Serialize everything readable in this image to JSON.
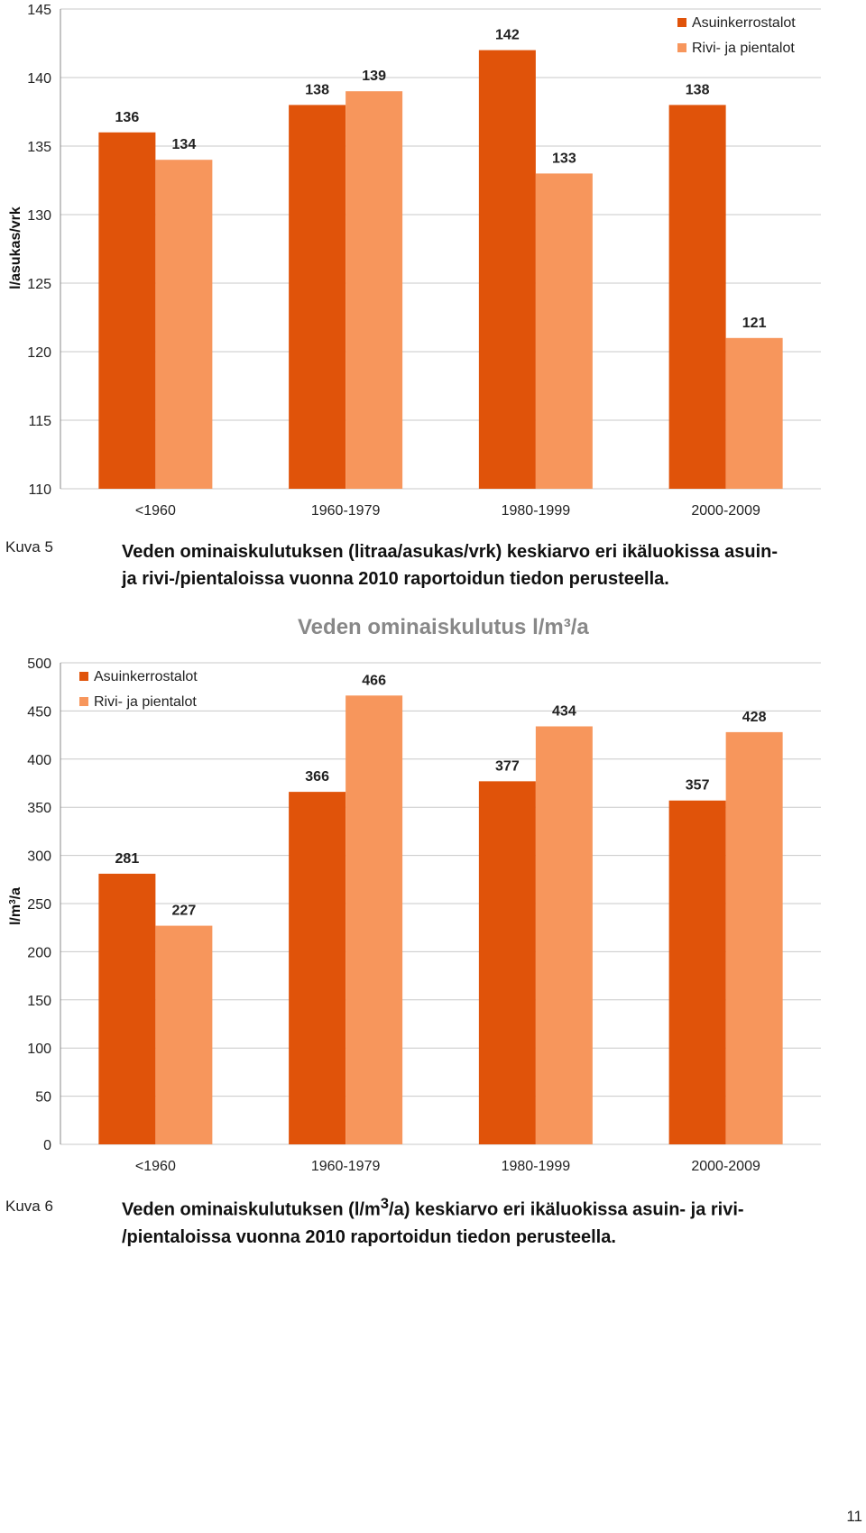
{
  "colors": {
    "asuinkerrostalot": "#e0530a",
    "rivi_pientalot": "#f7965c",
    "grid": "#c8c8c8",
    "axis_text": "#222222"
  },
  "caption1": {
    "label": "Kuva 5",
    "line1": "Veden ominaiskulutuksen (litraa/asukas/vrk) keskiarvo eri ikäluokissa asuin-",
    "line2": "ja rivi-/pientaloissa vuonna 2010 raportoidun tiedon perusteella."
  },
  "caption2": {
    "label": "Kuva 6",
    "line1_pre": "Veden ominaiskulutuksen (l/m",
    "line1_sup": "3",
    "line1_post": "/a) keskiarvo eri ikäluokissa asuin- ja rivi-",
    "line2": "/pientaloissa vuonna 2010 raportoidun tiedon perusteella."
  },
  "chart2_cut_title": "Veden ominaiskulutus l/m³/a",
  "page_number": "11",
  "chart_data": [
    {
      "type": "bar",
      "title": "",
      "ylabel": "l/asukas/vrk",
      "ylabel_sup": "",
      "ylabel_suffix": "",
      "ylim": [
        110,
        145
      ],
      "yticks": [
        110,
        115,
        120,
        125,
        130,
        135,
        140,
        145
      ],
      "grid": true,
      "legend": "top-right",
      "categories": [
        "<1960",
        "1960-1979",
        "1980-1999",
        "2000-2009"
      ],
      "series": [
        {
          "name": "Asuinkerrostalot",
          "values": [
            136,
            138,
            142,
            138
          ]
        },
        {
          "name": "Rivi- ja pientalot",
          "values": [
            134,
            139,
            133,
            121
          ]
        }
      ]
    },
    {
      "type": "bar",
      "title": "",
      "ylabel": "l/m",
      "ylabel_sup": "3",
      "ylabel_suffix": "/a",
      "ylim": [
        0,
        500
      ],
      "yticks": [
        0,
        50,
        100,
        150,
        200,
        250,
        300,
        350,
        400,
        450,
        500
      ],
      "grid": true,
      "legend": "top-left",
      "categories": [
        "<1960",
        "1960-1979",
        "1980-1999",
        "2000-2009"
      ],
      "series": [
        {
          "name": "Asuinkerrostalot",
          "values": [
            281,
            366,
            377,
            357
          ]
        },
        {
          "name": "Rivi- ja pientalot",
          "values": [
            227,
            466,
            434,
            428
          ]
        }
      ]
    }
  ]
}
